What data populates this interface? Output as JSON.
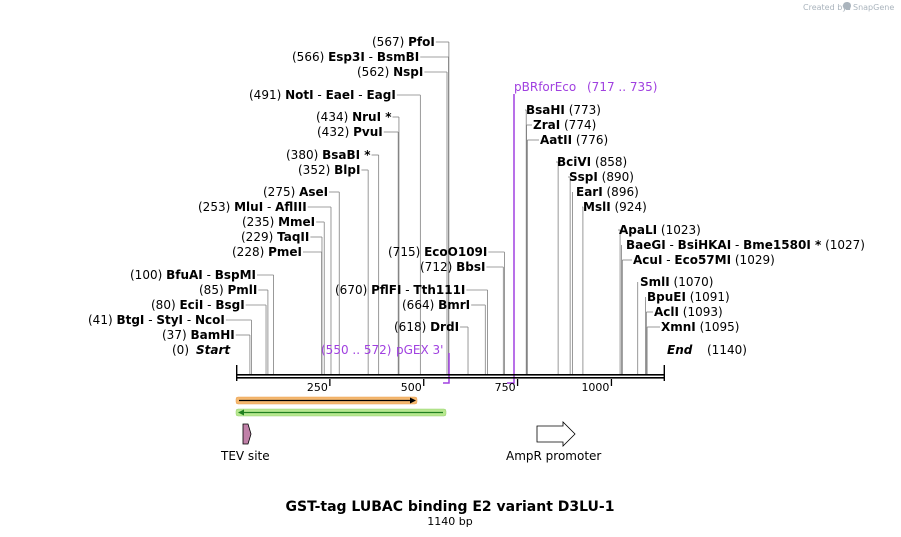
{
  "credit": {
    "text": "Created by",
    "brand": "SnapGene"
  },
  "title": "GST-tag LUBAC binding E2 variant D3LU-1",
  "length_label": "1140 bp",
  "sequence_length": 1140,
  "ticks": [
    "250",
    "500",
    "750",
    "1000"
  ],
  "ends": {
    "start": "Start",
    "start_pos": "(0)",
    "end": "End",
    "end_pos": "(1140)"
  },
  "enzymes": [
    {
      "pos": "(37)",
      "name": "BamHI"
    },
    {
      "pos": "(41)",
      "name": "BtgI",
      "extras": [
        "StyI",
        "NcoI"
      ]
    },
    {
      "pos": "(80)",
      "name": "EciI",
      "extras": [
        "BsgI"
      ]
    },
    {
      "pos": "(85)",
      "name": "PmlI"
    },
    {
      "pos": "(100)",
      "name": "BfuAI",
      "extras": [
        "BspMI"
      ]
    },
    {
      "pos": "(228)",
      "name": "PmeI"
    },
    {
      "pos": "(229)",
      "name": "TaqII"
    },
    {
      "pos": "(235)",
      "name": "MmeI"
    },
    {
      "pos": "(253)",
      "name": "MluI",
      "extras": [
        "AflIII"
      ]
    },
    {
      "pos": "(275)",
      "name": "AseI"
    },
    {
      "pos": "(352)",
      "name": "BlpI"
    },
    {
      "pos": "(380)",
      "name": "BsaBI *"
    },
    {
      "pos": "(432)",
      "name": "PvuI"
    },
    {
      "pos": "(434)",
      "name": "NruI *"
    },
    {
      "pos": "(491)",
      "name": "NotI",
      "extras": [
        "EaeI",
        "EagI"
      ]
    },
    {
      "pos": "(562)",
      "name": "NspI"
    },
    {
      "pos": "(566)",
      "name": "Esp3I",
      "extras": [
        "BsmBI"
      ]
    },
    {
      "pos": "(567)",
      "name": "PfoI"
    },
    {
      "pos": "(618)",
      "name": "DrdI"
    },
    {
      "pos": "(664)",
      "name": "BmrI"
    },
    {
      "pos": "(670)",
      "name": "PflFI",
      "extras": [
        "Tth111I"
      ]
    },
    {
      "pos": "(712)",
      "name": "BbsI"
    },
    {
      "pos": "(715)",
      "name": "EcoO109I"
    },
    {
      "pos": "(773)",
      "name": "BsaHI"
    },
    {
      "pos": "(774)",
      "name": "ZraI"
    },
    {
      "pos": "(776)",
      "name": "AatII"
    },
    {
      "pos": "(858)",
      "name": "BciVI"
    },
    {
      "pos": "(890)",
      "name": "SspI"
    },
    {
      "pos": "(896)",
      "name": "EarI"
    },
    {
      "pos": "(924)",
      "name": "MslI"
    },
    {
      "pos": "(1023)",
      "name": "ApaLI"
    },
    {
      "pos": "(1027)",
      "name": "BaeGI",
      "extras": [
        "BsiHKAI",
        "Bme1580I *"
      ]
    },
    {
      "pos": "(1029)",
      "name": "AcuI",
      "extras": [
        "Eco57MI"
      ]
    },
    {
      "pos": "(1070)",
      "name": "SmlI"
    },
    {
      "pos": "(1091)",
      "name": "BpuEI"
    },
    {
      "pos": "(1093)",
      "name": "AclI"
    },
    {
      "pos": "(1095)",
      "name": "XmnI"
    }
  ],
  "primers": [
    {
      "name": "pGEX 3'",
      "range": "(550 .. 572)"
    },
    {
      "name": "pBRforEco",
      "range": "(717 .. 735)"
    }
  ],
  "features": [
    {
      "name": "TEV site",
      "color": "#c080a8"
    },
    {
      "name": "AmpR promoter",
      "color": "#ffffff"
    }
  ],
  "orfs": [
    {
      "id": "orf-forward",
      "color": "#f5b870",
      "arrow": "#000000"
    },
    {
      "id": "orf-reverse",
      "color": "#b8e890",
      "arrow": "#208020"
    }
  ],
  "colors": {
    "primer": "#a040e0",
    "backbone": "#000000",
    "cut_line": "#808080"
  }
}
